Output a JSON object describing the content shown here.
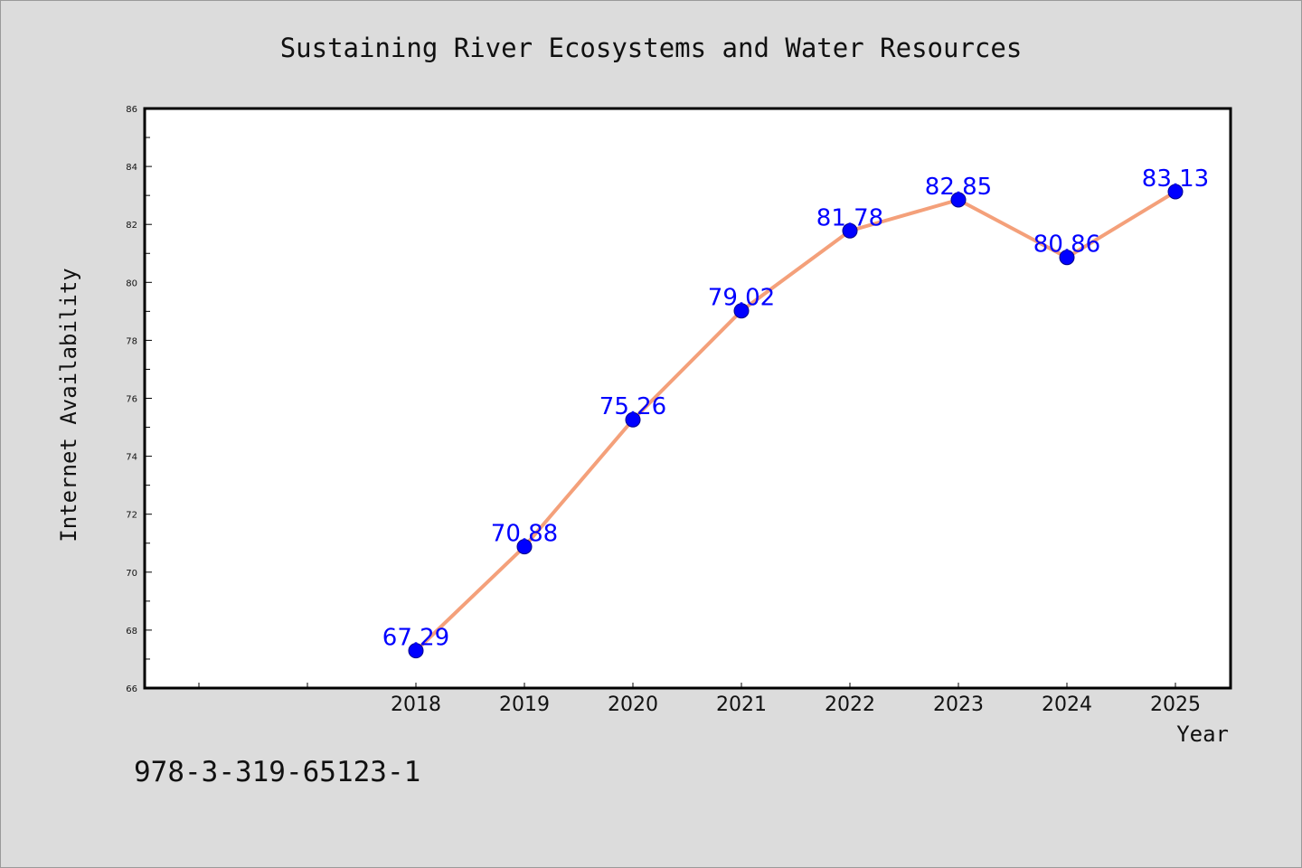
{
  "chart_data": {
    "type": "line",
    "title": "Sustaining River Ecosystems and Water Resources",
    "xlabel": "Year",
    "ylabel": "Internet Availability",
    "categories": [
      "2018",
      "2019",
      "2020",
      "2021",
      "2022",
      "2023",
      "2024",
      "2025"
    ],
    "series": [
      {
        "values": [
          67.29,
          70.88,
          75.26,
          79.02,
          81.78,
          82.85,
          80.86,
          83.13
        ]
      }
    ],
    "data_labels": [
      "67.29",
      "70.88",
      "75.26",
      "79.02",
      "81.78",
      "82.85",
      "80.86",
      "83.13"
    ],
    "ylim": [
      66,
      86
    ],
    "yticks": [
      "66",
      "68",
      "70",
      "72",
      "74",
      "76",
      "78",
      "80",
      "82",
      "84",
      "86"
    ],
    "line_color": "#f4a07a",
    "marker_color": "#0000ff",
    "label_color": "#0000ff",
    "grid": false,
    "legend": "none"
  },
  "footer": {
    "isbn": "978-3-319-65123-1"
  }
}
